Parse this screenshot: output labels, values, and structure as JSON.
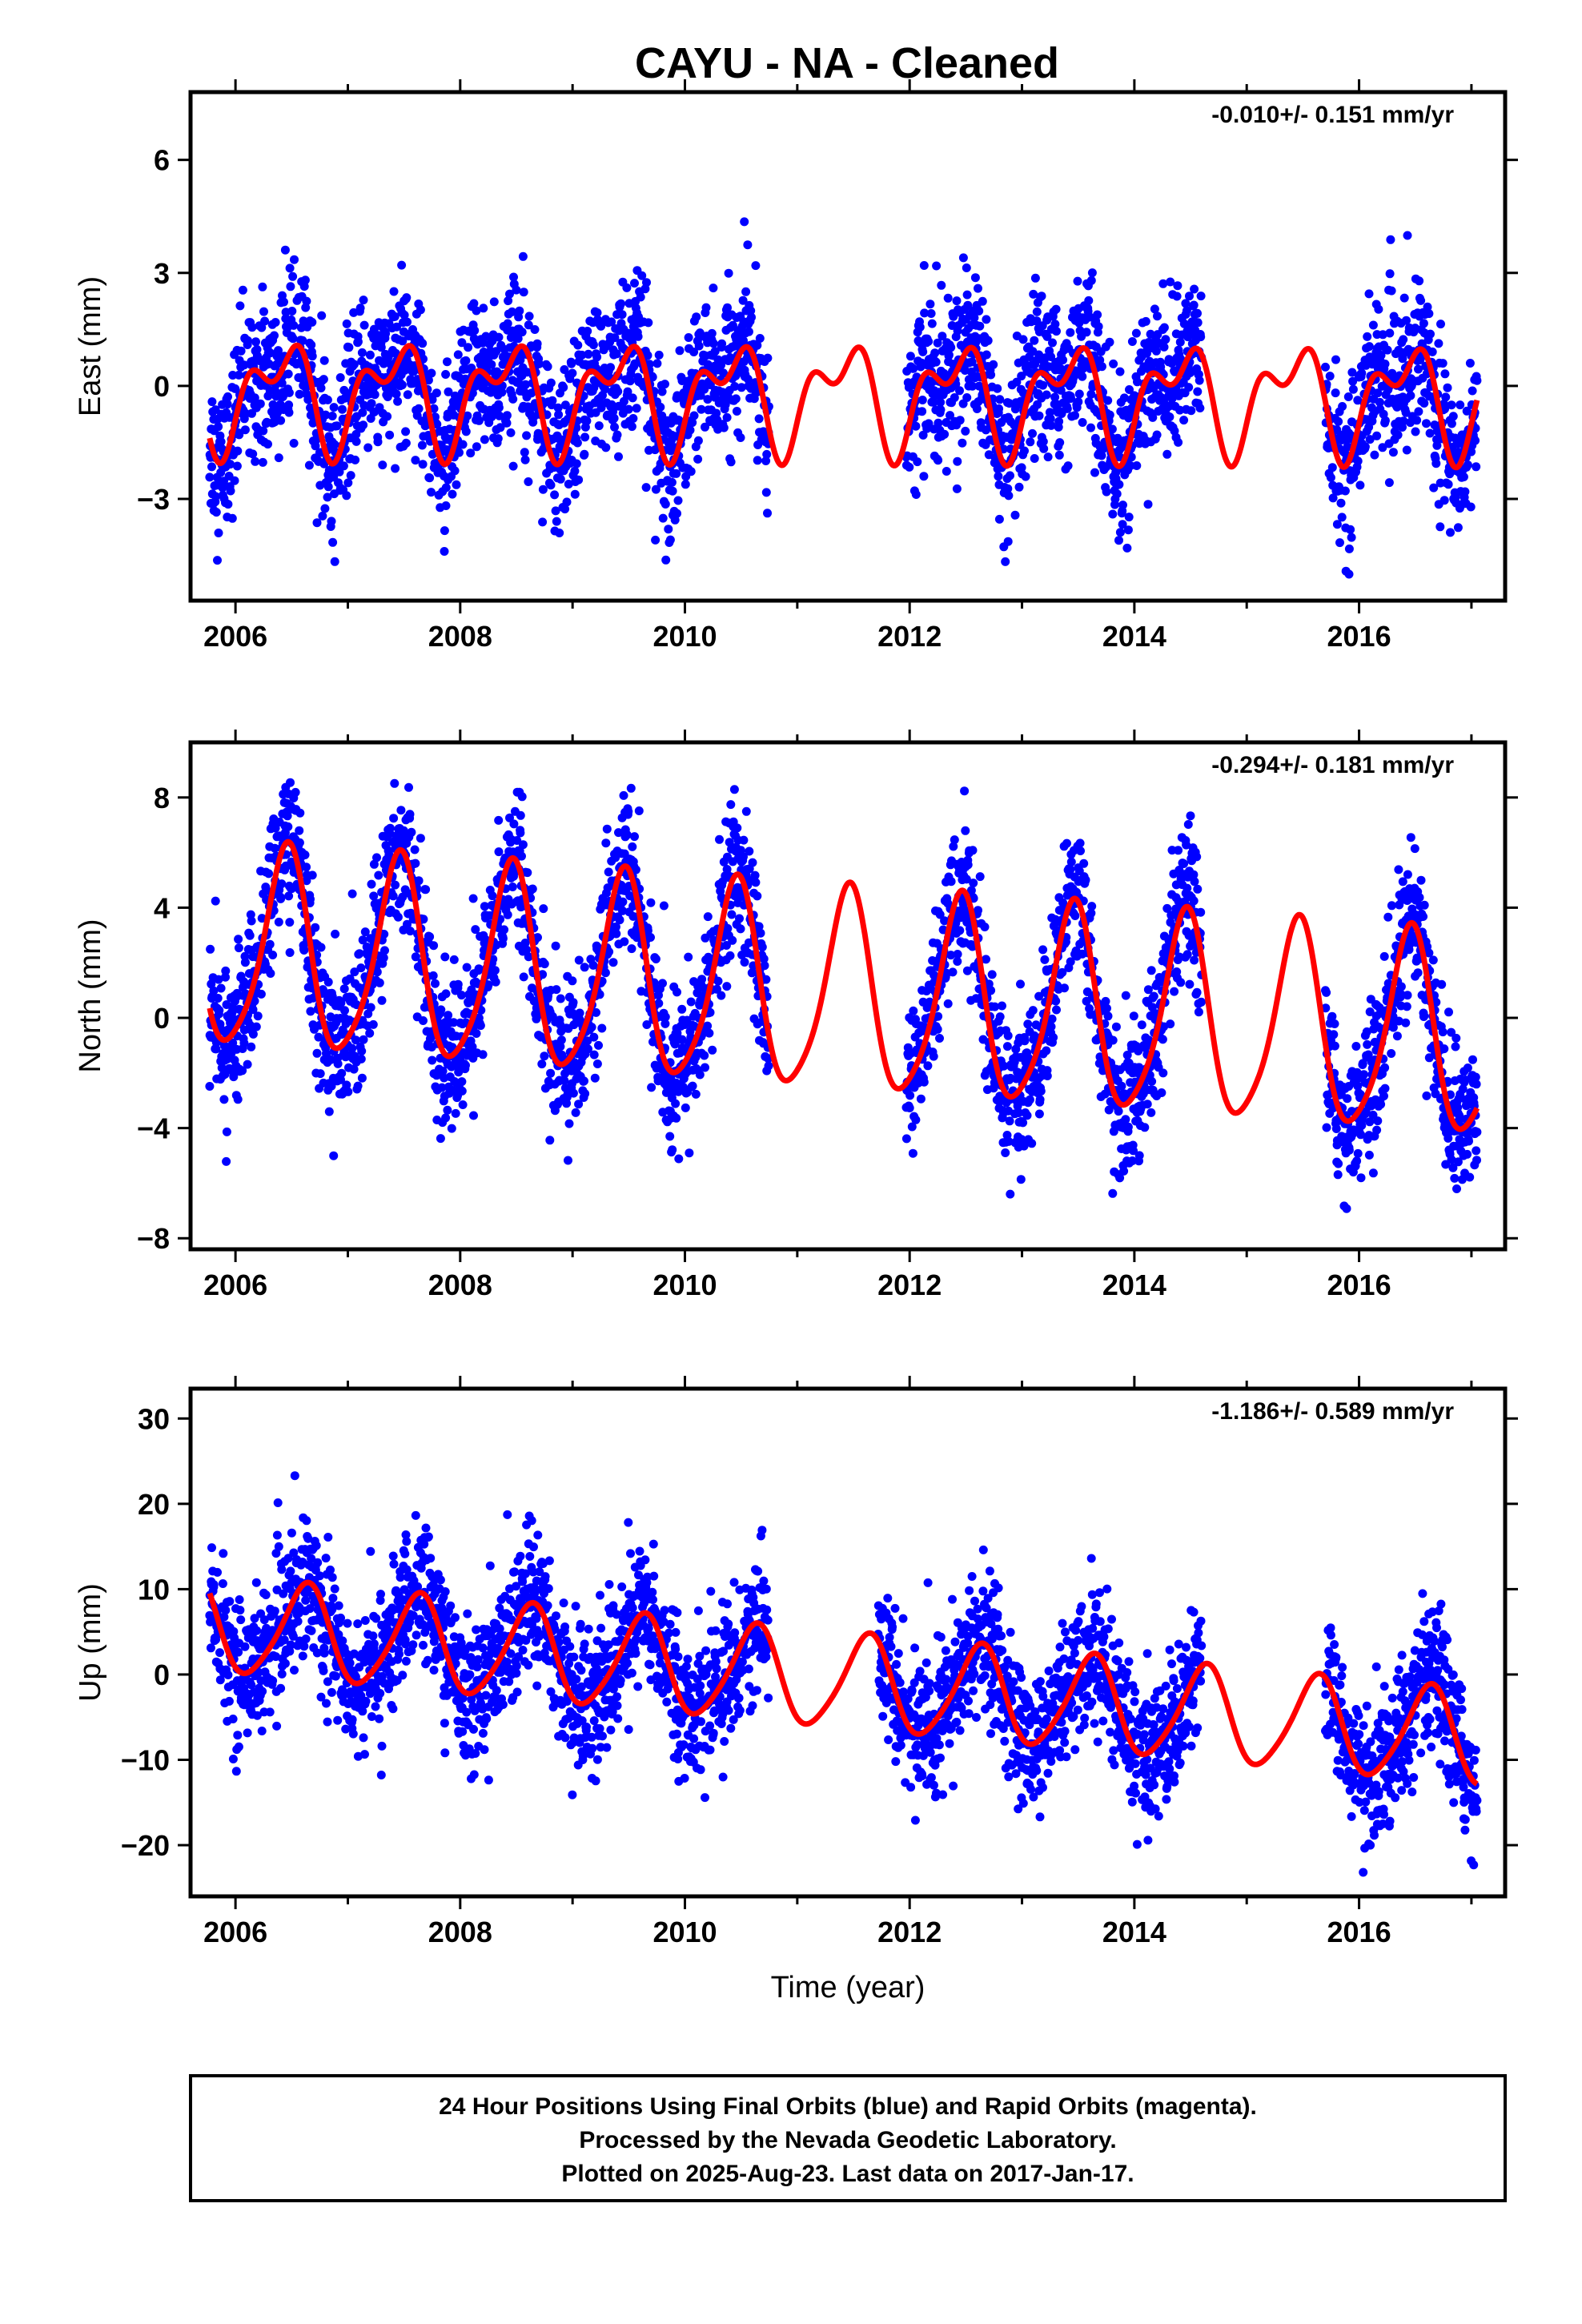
{
  "title": "CAYU  - NA - Cleaned",
  "colors": {
    "points": "#0000ff",
    "fit": "#ff0000",
    "frame": "#000000"
  },
  "chart_data": [
    {
      "type": "scatter",
      "ylabel": "East (mm)",
      "rate_text": "-0.010+/- 0.151 mm/yr",
      "xlim": [
        2005.6,
        2017.3
      ],
      "ylim": [
        -5.7,
        7.8
      ],
      "x_ticks": [
        2006,
        2008,
        2010,
        2012,
        2014,
        2016
      ],
      "x_tick_labels": [
        "2006",
        "2008",
        "2010",
        "2012",
        "2014",
        "2016"
      ],
      "y_ticks": [
        -3,
        0,
        3,
        6
      ],
      "y_tick_labels": [
        "−3",
        "0",
        "3",
        "6"
      ],
      "fit": {
        "x_start": 2005.77,
        "x_end": 2017.05,
        "offset": -0.2,
        "trend": -0.01,
        "annual_amp": 1.15,
        "annual_phase": 2006.4,
        "semiannual_amp": 0.75,
        "semiannual_phase": 2006.6
      },
      "data_segments": [
        [
          2005.77,
          2010.75
        ],
        [
          2011.97,
          2014.6
        ],
        [
          2015.7,
          2017.05
        ]
      ],
      "noise_sd": 1.0,
      "series": [
        {
          "name": "Final Orbits",
          "color": "#0000ff"
        },
        {
          "name": "Fit",
          "color": "#ff0000"
        }
      ]
    },
    {
      "type": "scatter",
      "ylabel": "North (mm)",
      "rate_text": "-0.294+/- 0.181 mm/yr",
      "xlim": [
        2005.6,
        2017.3
      ],
      "ylim": [
        -8.4,
        10.0
      ],
      "x_ticks": [
        2006,
        2008,
        2010,
        2012,
        2014,
        2016
      ],
      "x_tick_labels": [
        "2006",
        "2008",
        "2010",
        "2012",
        "2014",
        "2016"
      ],
      "y_ticks": [
        -8,
        -4,
        0,
        4,
        8
      ],
      "y_tick_labels": [
        "−8",
        "−4",
        "0",
        "4",
        "8"
      ],
      "fit": {
        "x_start": 2005.77,
        "x_end": 2017.05,
        "offset": 2.4,
        "trend": -0.294,
        "annual_amp": 3.6,
        "annual_phase": 2006.45,
        "semiannual_amp": 0.6,
        "semiannual_phase": 2006.5
      },
      "data_segments": [
        [
          2005.77,
          2010.75
        ],
        [
          2011.97,
          2014.6
        ],
        [
          2015.7,
          2017.05
        ]
      ],
      "noise_sd": 1.3,
      "series": [
        {
          "name": "Final Orbits",
          "color": "#0000ff"
        },
        {
          "name": "Fit",
          "color": "#ff0000"
        }
      ]
    },
    {
      "type": "scatter",
      "ylabel": "Up (mm)",
      "rate_text": "-1.186+/- 0.589 mm/yr",
      "xlim": [
        2005.6,
        2017.3
      ],
      "ylim": [
        -26,
        33.5
      ],
      "x_ticks": [
        2006,
        2008,
        2010,
        2012,
        2014,
        2016
      ],
      "x_tick_labels": [
        "2006",
        "2008",
        "2010",
        "2012",
        "2014",
        "2016"
      ],
      "y_ticks": [
        -20,
        -10,
        0,
        10,
        20,
        30
      ],
      "y_tick_labels": [
        "−20",
        "−10",
        "0",
        "10",
        "20",
        "30"
      ],
      "xlabel": "Time (year)",
      "fit": {
        "x_start": 2005.77,
        "x_end": 2017.05,
        "offset": 5.5,
        "trend": -1.186,
        "annual_amp": 5.5,
        "annual_phase": 2006.62,
        "semiannual_amp": 0.8,
        "semiannual_phase": 2006.7
      },
      "data_segments": [
        [
          2005.77,
          2010.75
        ],
        [
          2011.72,
          2014.6
        ],
        [
          2015.7,
          2017.05
        ]
      ],
      "noise_sd": 4.0,
      "series": [
        {
          "name": "Final Orbits",
          "color": "#0000ff"
        },
        {
          "name": "Fit",
          "color": "#ff0000"
        }
      ]
    }
  ],
  "footer": {
    "line1": "24 Hour Positions Using Final Orbits (blue) and Rapid Orbits (magenta).",
    "line2": "Processed by the Nevada Geodetic Laboratory.",
    "line3": "Plotted on 2025-Aug-23. Last data on 2017-Jan-17."
  }
}
